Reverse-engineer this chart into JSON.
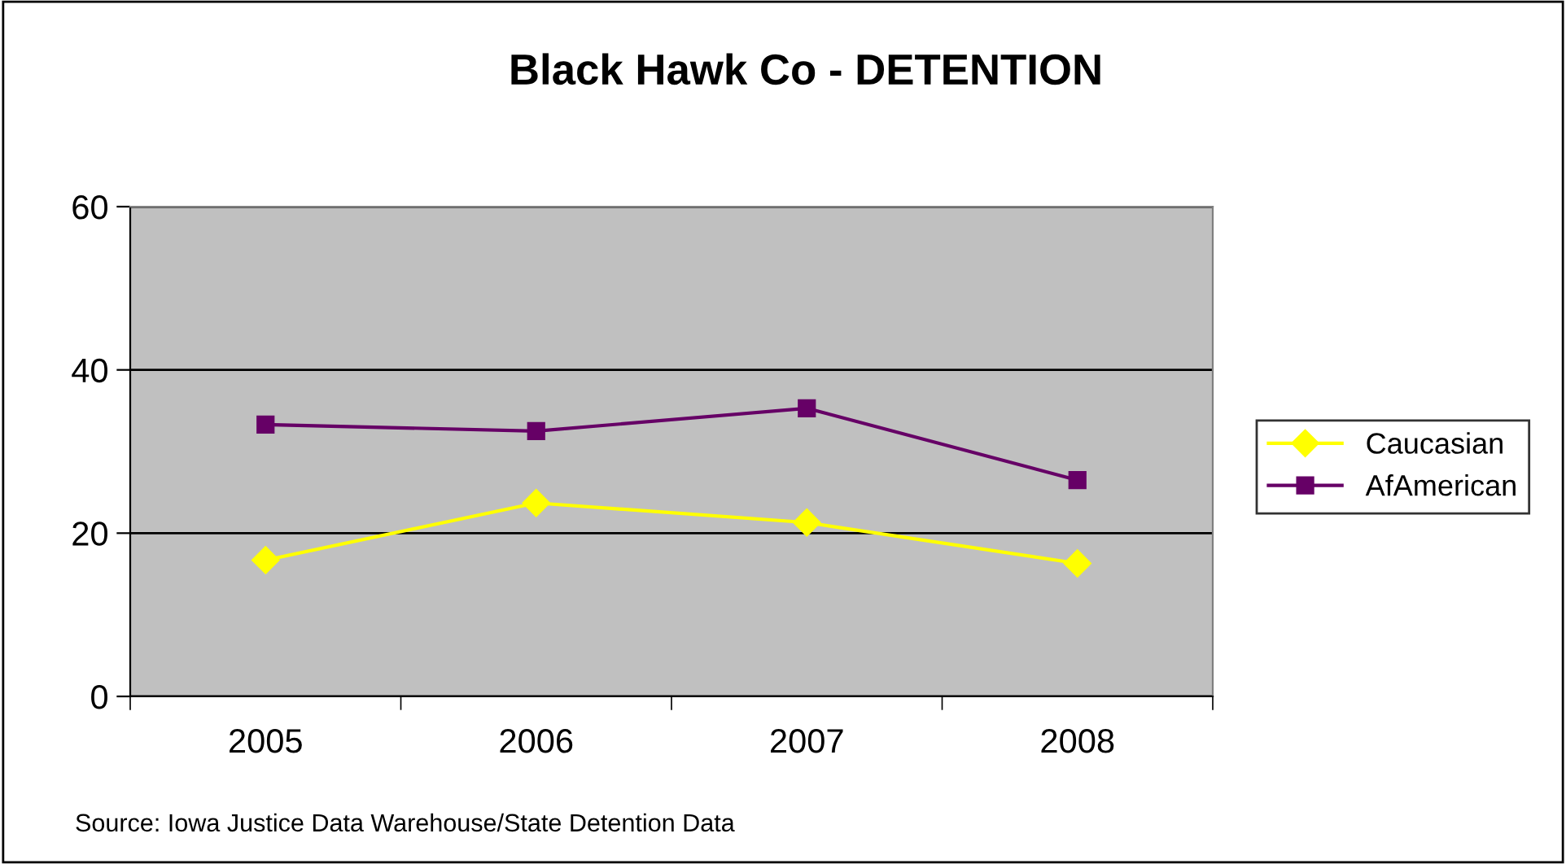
{
  "chart_data": {
    "type": "line",
    "title": "Black Hawk Co - DETENTION",
    "categories": [
      "2005",
      "2006",
      "2007",
      "2008"
    ],
    "series": [
      {
        "name": "Caucasian",
        "color": "#ffff00",
        "marker": "diamond",
        "values": [
          16.7,
          23.7,
          21.3,
          16.3
        ]
      },
      {
        "name": "AfAmerican",
        "color": "#660066",
        "marker": "square",
        "values": [
          33.3,
          32.5,
          35.3,
          26.5
        ]
      }
    ],
    "ylim": [
      0,
      60
    ],
    "yticks": [
      0,
      20,
      40,
      60
    ],
    "grid": "y",
    "legend": "right",
    "annotations": [
      "Source: Iowa Justice Data Warehouse/State Detention Data"
    ]
  }
}
